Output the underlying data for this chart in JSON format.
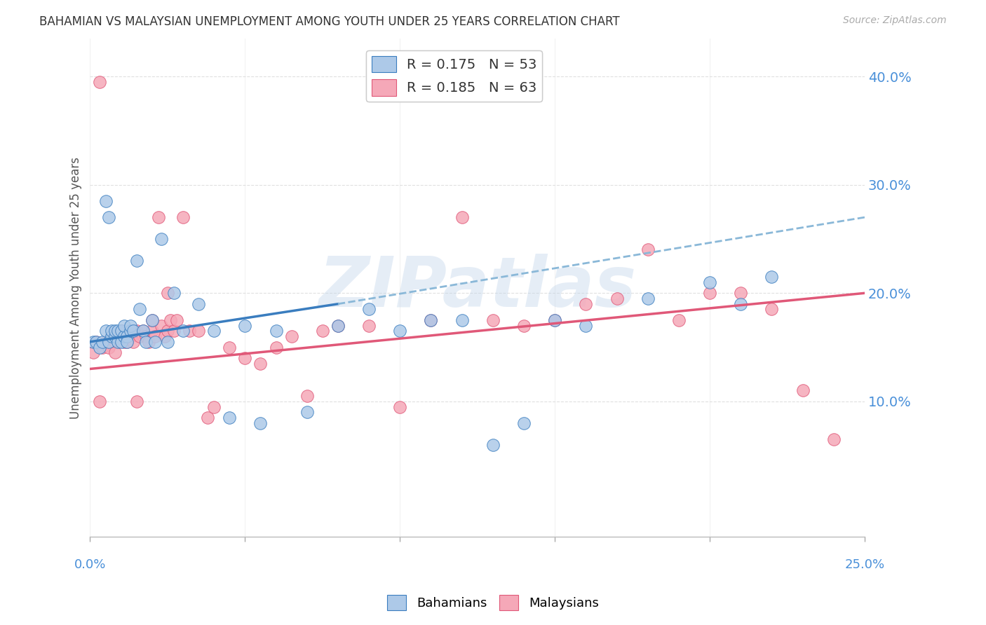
{
  "title": "BAHAMIAN VS MALAYSIAN UNEMPLOYMENT AMONG YOUTH UNDER 25 YEARS CORRELATION CHART",
  "source": "Source: ZipAtlas.com",
  "ylabel": "Unemployment Among Youth under 25 years",
  "xtick_label_left": "0.0%",
  "xtick_label_right": "25.0%",
  "xlim": [
    0.0,
    0.25
  ],
  "ylim": [
    -0.025,
    0.435
  ],
  "yticks": [
    0.1,
    0.2,
    0.3,
    0.4
  ],
  "ytick_labels": [
    "10.0%",
    "20.0%",
    "30.0%",
    "40.0%"
  ],
  "bahamians_color": "#adc9e8",
  "malaysians_color": "#f5a8b8",
  "bahamian_solid_color": "#3a7dbf",
  "bahamian_dash_color": "#8ab8d8",
  "malaysian_line_color": "#e05878",
  "legend_R1": "R = 0.175",
  "legend_N1": "N = 53",
  "legend_R2": "R = 0.185",
  "legend_N2": "N = 63",
  "watermark": "ZIPatlas",
  "bg_color": "#ffffff",
  "grid_color": "#dddddd",
  "title_color": "#333333",
  "source_color": "#aaaaaa",
  "axis_label_color": "#4a90d9",
  "bahamians_x": [
    0.001,
    0.002,
    0.003,
    0.004,
    0.005,
    0.005,
    0.006,
    0.006,
    0.007,
    0.007,
    0.008,
    0.008,
    0.009,
    0.009,
    0.01,
    0.01,
    0.011,
    0.011,
    0.012,
    0.012,
    0.013,
    0.013,
    0.014,
    0.015,
    0.016,
    0.017,
    0.018,
    0.02,
    0.021,
    0.023,
    0.025,
    0.027,
    0.03,
    0.035,
    0.04,
    0.045,
    0.05,
    0.055,
    0.06,
    0.07,
    0.08,
    0.09,
    0.1,
    0.11,
    0.12,
    0.13,
    0.14,
    0.15,
    0.16,
    0.18,
    0.2,
    0.21,
    0.22
  ],
  "bahamians_y": [
    0.155,
    0.155,
    0.15,
    0.155,
    0.165,
    0.285,
    0.155,
    0.27,
    0.16,
    0.165,
    0.16,
    0.165,
    0.155,
    0.165,
    0.155,
    0.165,
    0.16,
    0.17,
    0.16,
    0.155,
    0.165,
    0.17,
    0.165,
    0.23,
    0.185,
    0.165,
    0.155,
    0.175,
    0.155,
    0.25,
    0.155,
    0.2,
    0.165,
    0.19,
    0.165,
    0.085,
    0.17,
    0.08,
    0.165,
    0.09,
    0.17,
    0.185,
    0.165,
    0.175,
    0.175,
    0.06,
    0.08,
    0.175,
    0.17,
    0.195,
    0.21,
    0.19,
    0.215
  ],
  "malaysians_x": [
    0.001,
    0.002,
    0.003,
    0.004,
    0.005,
    0.006,
    0.007,
    0.008,
    0.009,
    0.01,
    0.01,
    0.011,
    0.012,
    0.013,
    0.014,
    0.015,
    0.016,
    0.017,
    0.018,
    0.019,
    0.02,
    0.021,
    0.022,
    0.023,
    0.024,
    0.025,
    0.026,
    0.027,
    0.028,
    0.03,
    0.032,
    0.035,
    0.038,
    0.04,
    0.045,
    0.05,
    0.055,
    0.06,
    0.065,
    0.07,
    0.075,
    0.08,
    0.09,
    0.1,
    0.11,
    0.12,
    0.13,
    0.14,
    0.15,
    0.16,
    0.17,
    0.18,
    0.19,
    0.2,
    0.21,
    0.22,
    0.23,
    0.24,
    0.003,
    0.008,
    0.015,
    0.02,
    0.025
  ],
  "malaysians_y": [
    0.145,
    0.155,
    0.395,
    0.15,
    0.155,
    0.15,
    0.16,
    0.155,
    0.155,
    0.16,
    0.165,
    0.155,
    0.155,
    0.16,
    0.155,
    0.165,
    0.16,
    0.165,
    0.16,
    0.155,
    0.165,
    0.16,
    0.27,
    0.17,
    0.16,
    0.165,
    0.175,
    0.165,
    0.175,
    0.27,
    0.165,
    0.165,
    0.085,
    0.095,
    0.15,
    0.14,
    0.135,
    0.15,
    0.16,
    0.105,
    0.165,
    0.17,
    0.17,
    0.095,
    0.175,
    0.27,
    0.175,
    0.17,
    0.175,
    0.19,
    0.195,
    0.24,
    0.175,
    0.2,
    0.2,
    0.185,
    0.11,
    0.065,
    0.1,
    0.145,
    0.1,
    0.175,
    0.2
  ],
  "bah_line_x0": 0.0,
  "bah_line_x1": 0.08,
  "bah_line_x2": 0.25,
  "bah_line_y0": 0.155,
  "bah_line_y1": 0.19,
  "bah_line_y2": 0.27,
  "mal_line_x0": 0.0,
  "mal_line_x1": 0.25,
  "mal_line_y0": 0.13,
  "mal_line_y1": 0.2
}
